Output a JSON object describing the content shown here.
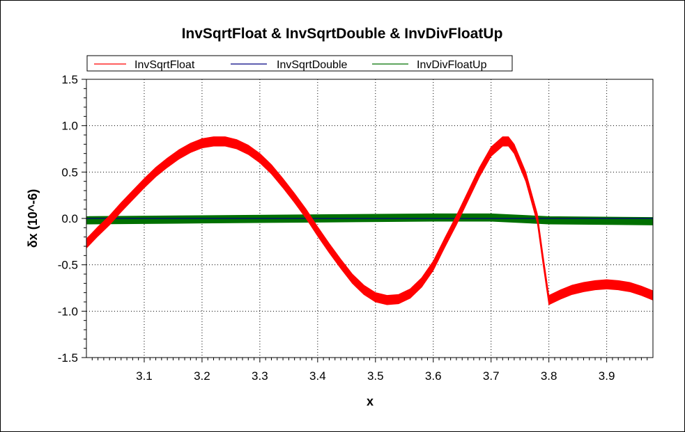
{
  "chart_data": {
    "type": "line",
    "title": "InvSqrtFloat & InvSqrtDouble & InvDivFloatUp",
    "xlabel": "x",
    "ylabel": "δx (10^-6)",
    "xlim": [
      3.0,
      3.98
    ],
    "ylim": [
      -1.5,
      1.5
    ],
    "x_ticks": [
      "3.1",
      "3.2",
      "3.3",
      "3.4",
      "3.5",
      "3.6",
      "3.7",
      "3.8",
      "3.9"
    ],
    "y_ticks": [
      "1.5",
      "1.0",
      "0.5",
      "0.0",
      "-0.5",
      "-1.0",
      "-1.5"
    ],
    "grid": true,
    "legend_position": "top",
    "series": [
      {
        "name": "InvSqrtFloat",
        "color": "#ff0000",
        "band_halfwidth": 0.05,
        "x": [
          3.0,
          3.02,
          3.04,
          3.06,
          3.08,
          3.1,
          3.12,
          3.14,
          3.16,
          3.18,
          3.2,
          3.22,
          3.24,
          3.26,
          3.28,
          3.3,
          3.32,
          3.34,
          3.36,
          3.38,
          3.4,
          3.42,
          3.44,
          3.46,
          3.48,
          3.5,
          3.52,
          3.54,
          3.56,
          3.58,
          3.6,
          3.62,
          3.64,
          3.66,
          3.68,
          3.7,
          3.72,
          3.73,
          3.74,
          3.76,
          3.78,
          3.79,
          3.8,
          3.82,
          3.84,
          3.86,
          3.88,
          3.9,
          3.92,
          3.94,
          3.96,
          3.98
        ],
        "y": [
          -0.27,
          -0.14,
          -0.02,
          0.12,
          0.25,
          0.38,
          0.5,
          0.6,
          0.69,
          0.76,
          0.81,
          0.83,
          0.83,
          0.8,
          0.74,
          0.65,
          0.53,
          0.38,
          0.22,
          0.05,
          -0.14,
          -0.32,
          -0.49,
          -0.65,
          -0.77,
          -0.85,
          -0.88,
          -0.87,
          -0.81,
          -0.69,
          -0.51,
          -0.26,
          -0.02,
          0.24,
          0.5,
          0.72,
          0.83,
          0.83,
          0.75,
          0.45,
          0.0,
          -0.45,
          -0.88,
          -0.82,
          -0.77,
          -0.74,
          -0.72,
          -0.71,
          -0.72,
          -0.74,
          -0.78,
          -0.83
        ]
      },
      {
        "name": "InvSqrtDouble",
        "color": "#000080",
        "band_halfwidth": 0.0,
        "x": [
          3.0,
          3.2,
          3.4,
          3.6,
          3.8,
          3.98
        ],
        "y": [
          0.0,
          0.0,
          0.0,
          0.0,
          0.0,
          0.0
        ]
      },
      {
        "name": "InvDivFloatUp",
        "color": "#007000",
        "band_halfwidth": 0.04,
        "x": [
          3.0,
          3.2,
          3.4,
          3.6,
          3.7,
          3.8,
          3.98
        ],
        "y": [
          -0.02,
          -0.01,
          0.0,
          0.01,
          0.01,
          -0.02,
          -0.03
        ]
      }
    ]
  }
}
